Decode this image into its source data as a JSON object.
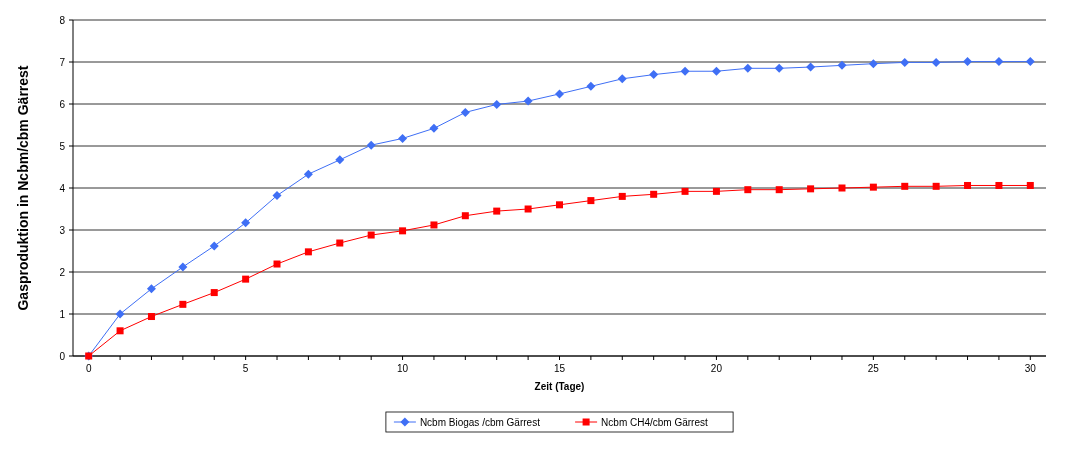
{
  "chart_data": {
    "type": "line",
    "xlabel": "Zeit (Tage)",
    "ylabel": "Gasproduktion in Ncbm/cbm Gärrest",
    "x": [
      0,
      1,
      2,
      3,
      4,
      5,
      6,
      7,
      8,
      9,
      10,
      11,
      12,
      13,
      14,
      15,
      16,
      17,
      18,
      19,
      20,
      21,
      22,
      23,
      24,
      25,
      26,
      27,
      28,
      29,
      30
    ],
    "series": [
      {
        "name": "Ncbm Biogas /cbm Gärrest",
        "color": "#3f6ff5",
        "marker": "diamond",
        "values": [
          0,
          1.0,
          1.6,
          2.12,
          2.62,
          3.17,
          3.82,
          4.33,
          4.67,
          5.02,
          5.18,
          5.42,
          5.8,
          5.99,
          6.07,
          6.24,
          6.42,
          6.6,
          6.7,
          6.78,
          6.78,
          6.85,
          6.85,
          6.88,
          6.92,
          6.96,
          6.99,
          6.99,
          7.01,
          7.01,
          7.01
        ]
      },
      {
        "name": "Ncbm CH4/cbm Gärrest",
        "color": "#ff0000",
        "marker": "square",
        "values": [
          0,
          0.6,
          0.94,
          1.23,
          1.51,
          1.83,
          2.19,
          2.48,
          2.69,
          2.88,
          2.98,
          3.12,
          3.34,
          3.45,
          3.5,
          3.6,
          3.7,
          3.8,
          3.85,
          3.92,
          3.92,
          3.96,
          3.96,
          3.98,
          4.0,
          4.02,
          4.04,
          4.04,
          4.06,
          4.06,
          4.06
        ]
      }
    ],
    "xlim": [
      -0.5,
      30.5
    ],
    "xticks": [
      0,
      {
        "value": 1,
        "label": null
      },
      {
        "value": 2,
        "label": null
      },
      {
        "value": 3,
        "label": null
      },
      {
        "value": 4,
        "label": null
      },
      5,
      {
        "value": 6,
        "label": null
      },
      {
        "value": 7,
        "label": null
      },
      {
        "value": 8,
        "label": null
      },
      {
        "value": 9,
        "label": null
      },
      10,
      {
        "value": 11,
        "label": null
      },
      {
        "value": 12,
        "label": null
      },
      {
        "value": 13,
        "label": null
      },
      {
        "value": 14,
        "label": null
      },
      15,
      {
        "value": 16,
        "label": null
      },
      {
        "value": 17,
        "label": null
      },
      {
        "value": 18,
        "label": null
      },
      {
        "value": 19,
        "label": null
      },
      20,
      {
        "value": 21,
        "label": null
      },
      {
        "value": 22,
        "label": null
      },
      {
        "value": 23,
        "label": null
      },
      {
        "value": 24,
        "label": null
      },
      25,
      {
        "value": 26,
        "label": null
      },
      {
        "value": 27,
        "label": null
      },
      {
        "value": 28,
        "label": null
      },
      {
        "value": 29,
        "label": null
      },
      30
    ],
    "ylim": [
      0,
      8
    ],
    "yticks": [
      0,
      1,
      2,
      3,
      4,
      5,
      6,
      7,
      8
    ],
    "grid": "y",
    "legend": "bottom"
  }
}
